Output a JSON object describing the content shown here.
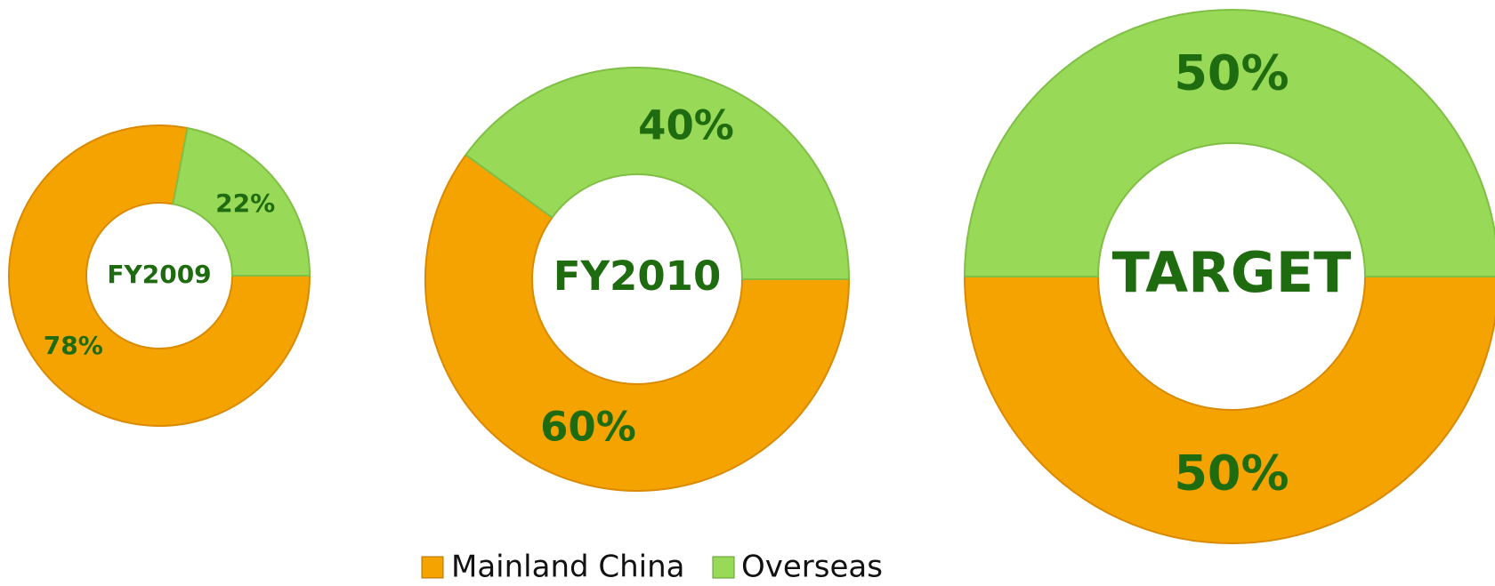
{
  "chart_data": [
    {
      "type": "donut",
      "title": "FY2009",
      "categories": [
        "Mainland China",
        "Overseas"
      ],
      "values": [
        78,
        22
      ],
      "value_labels": [
        "78%",
        "22%"
      ],
      "colors": [
        "#f5a300",
        "#98d957"
      ]
    },
    {
      "type": "donut",
      "title": "FY2010",
      "categories": [
        "Mainland China",
        "Overseas"
      ],
      "values": [
        60,
        40
      ],
      "value_labels": [
        "60%",
        "40%"
      ],
      "colors": [
        "#f5a300",
        "#98d957"
      ]
    },
    {
      "type": "donut",
      "title": "TARGET",
      "categories": [
        "Mainland China",
        "Overseas"
      ],
      "values": [
        50,
        50
      ],
      "value_labels": [
        "50%",
        "50%"
      ],
      "colors": [
        "#f5a300",
        "#98d957"
      ]
    }
  ]
}
